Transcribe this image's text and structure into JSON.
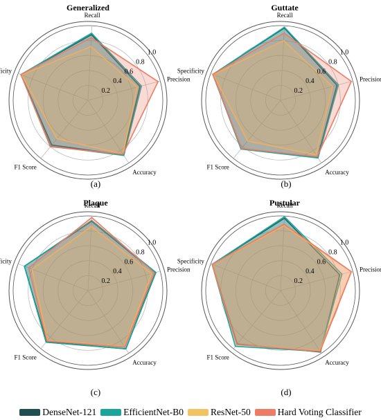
{
  "chart_data": [
    {
      "type": "radar",
      "title": "Generalized",
      "caption": "(a)",
      "axes": [
        "Precision",
        "Recall",
        "Specificity",
        "F1 Score",
        "Accuracy"
      ],
      "rlim": [
        0,
        1.0
      ],
      "ticks": [
        "0.2",
        "0.4",
        "0.6",
        "0.8",
        "1.0"
      ],
      "series": [
        {
          "name": "DenseNet-121",
          "values": [
            0.72,
            0.88,
            0.96,
            0.77,
            0.87
          ]
        },
        {
          "name": "EfficientNet-B0",
          "values": [
            0.74,
            0.9,
            0.96,
            0.79,
            0.88
          ]
        },
        {
          "name": "ResNet-50",
          "values": [
            0.68,
            0.72,
            0.95,
            0.66,
            0.86
          ]
        },
        {
          "name": "Hard Voting Classifier",
          "values": [
            0.97,
            0.84,
            0.96,
            0.8,
            0.86
          ]
        }
      ]
    },
    {
      "type": "radar",
      "title": "Guttate",
      "caption": "(b)",
      "axes": [
        "Precision",
        "Recall",
        "Specificity",
        "F1 Score",
        "Accuracy"
      ],
      "rlim": [
        0,
        1.0
      ],
      "ticks": [
        "0.2",
        "0.4",
        "0.6",
        "0.8",
        "1.0"
      ],
      "series": [
        {
          "name": "DenseNet-121",
          "values": [
            0.78,
            0.97,
            0.97,
            0.83,
            0.91
          ]
        },
        {
          "name": "EfficientNet-B0",
          "values": [
            0.8,
            0.98,
            0.97,
            0.84,
            0.92
          ]
        },
        {
          "name": "ResNet-50",
          "values": [
            0.72,
            0.8,
            0.96,
            0.7,
            0.87
          ]
        },
        {
          "name": "Hard Voting Classifier",
          "values": [
            0.98,
            0.9,
            0.97,
            0.83,
            0.9
          ]
        }
      ]
    },
    {
      "type": "radar",
      "title": "Plaque",
      "caption": "(c)",
      "axes": [
        "Precision",
        "Recall",
        "Specificity",
        "F1 Score",
        "Accuracy"
      ],
      "rlim": [
        0,
        1.0
      ],
      "ticks": [
        "0.2",
        "0.4",
        "0.6",
        "0.8",
        "1.0"
      ],
      "series": [
        {
          "name": "DenseNet-121",
          "values": [
            0.93,
            0.93,
            0.91,
            0.88,
            0.93
          ]
        },
        {
          "name": "EfficientNet-B0",
          "values": [
            0.94,
            0.94,
            0.91,
            0.89,
            0.93
          ]
        },
        {
          "name": "ResNet-50",
          "values": [
            0.88,
            0.86,
            0.8,
            0.86,
            0.89
          ]
        },
        {
          "name": "Hard Voting Classifier",
          "values": [
            0.92,
            0.98,
            0.85,
            0.87,
            0.9
          ]
        }
      ]
    },
    {
      "type": "radar",
      "title": "Pustular",
      "caption": "(d)",
      "axes": [
        "Precision",
        "Recall",
        "Specificity",
        "F1 Score",
        "Accuracy"
      ],
      "rlim": [
        0,
        1.0
      ],
      "ticks": [
        "0.2",
        "0.4",
        "0.6",
        "0.8",
        "1.0"
      ],
      "series": [
        {
          "name": "DenseNet-121",
          "values": [
            0.82,
            0.97,
            0.98,
            0.92,
            0.98
          ]
        },
        {
          "name": "EfficientNet-B0",
          "values": [
            0.85,
            0.99,
            0.98,
            0.96,
            0.97
          ]
        },
        {
          "name": "ResNet-50",
          "values": [
            0.98,
            0.87,
            0.98,
            0.93,
            0.96
          ]
        },
        {
          "name": "Hard Voting Classifier",
          "values": [
            0.98,
            0.89,
            0.98,
            0.93,
            0.97
          ]
        }
      ]
    }
  ],
  "legend": {
    "items": [
      {
        "label": "DenseNet-121",
        "color": "#1f4e4f"
      },
      {
        "label": "EfficientNet-B0",
        "color": "#1aa59a"
      },
      {
        "label": "ResNet-50",
        "color": "#f2c45f"
      },
      {
        "label": "Hard Voting Classifier",
        "color": "#ee7b63"
      }
    ]
  }
}
